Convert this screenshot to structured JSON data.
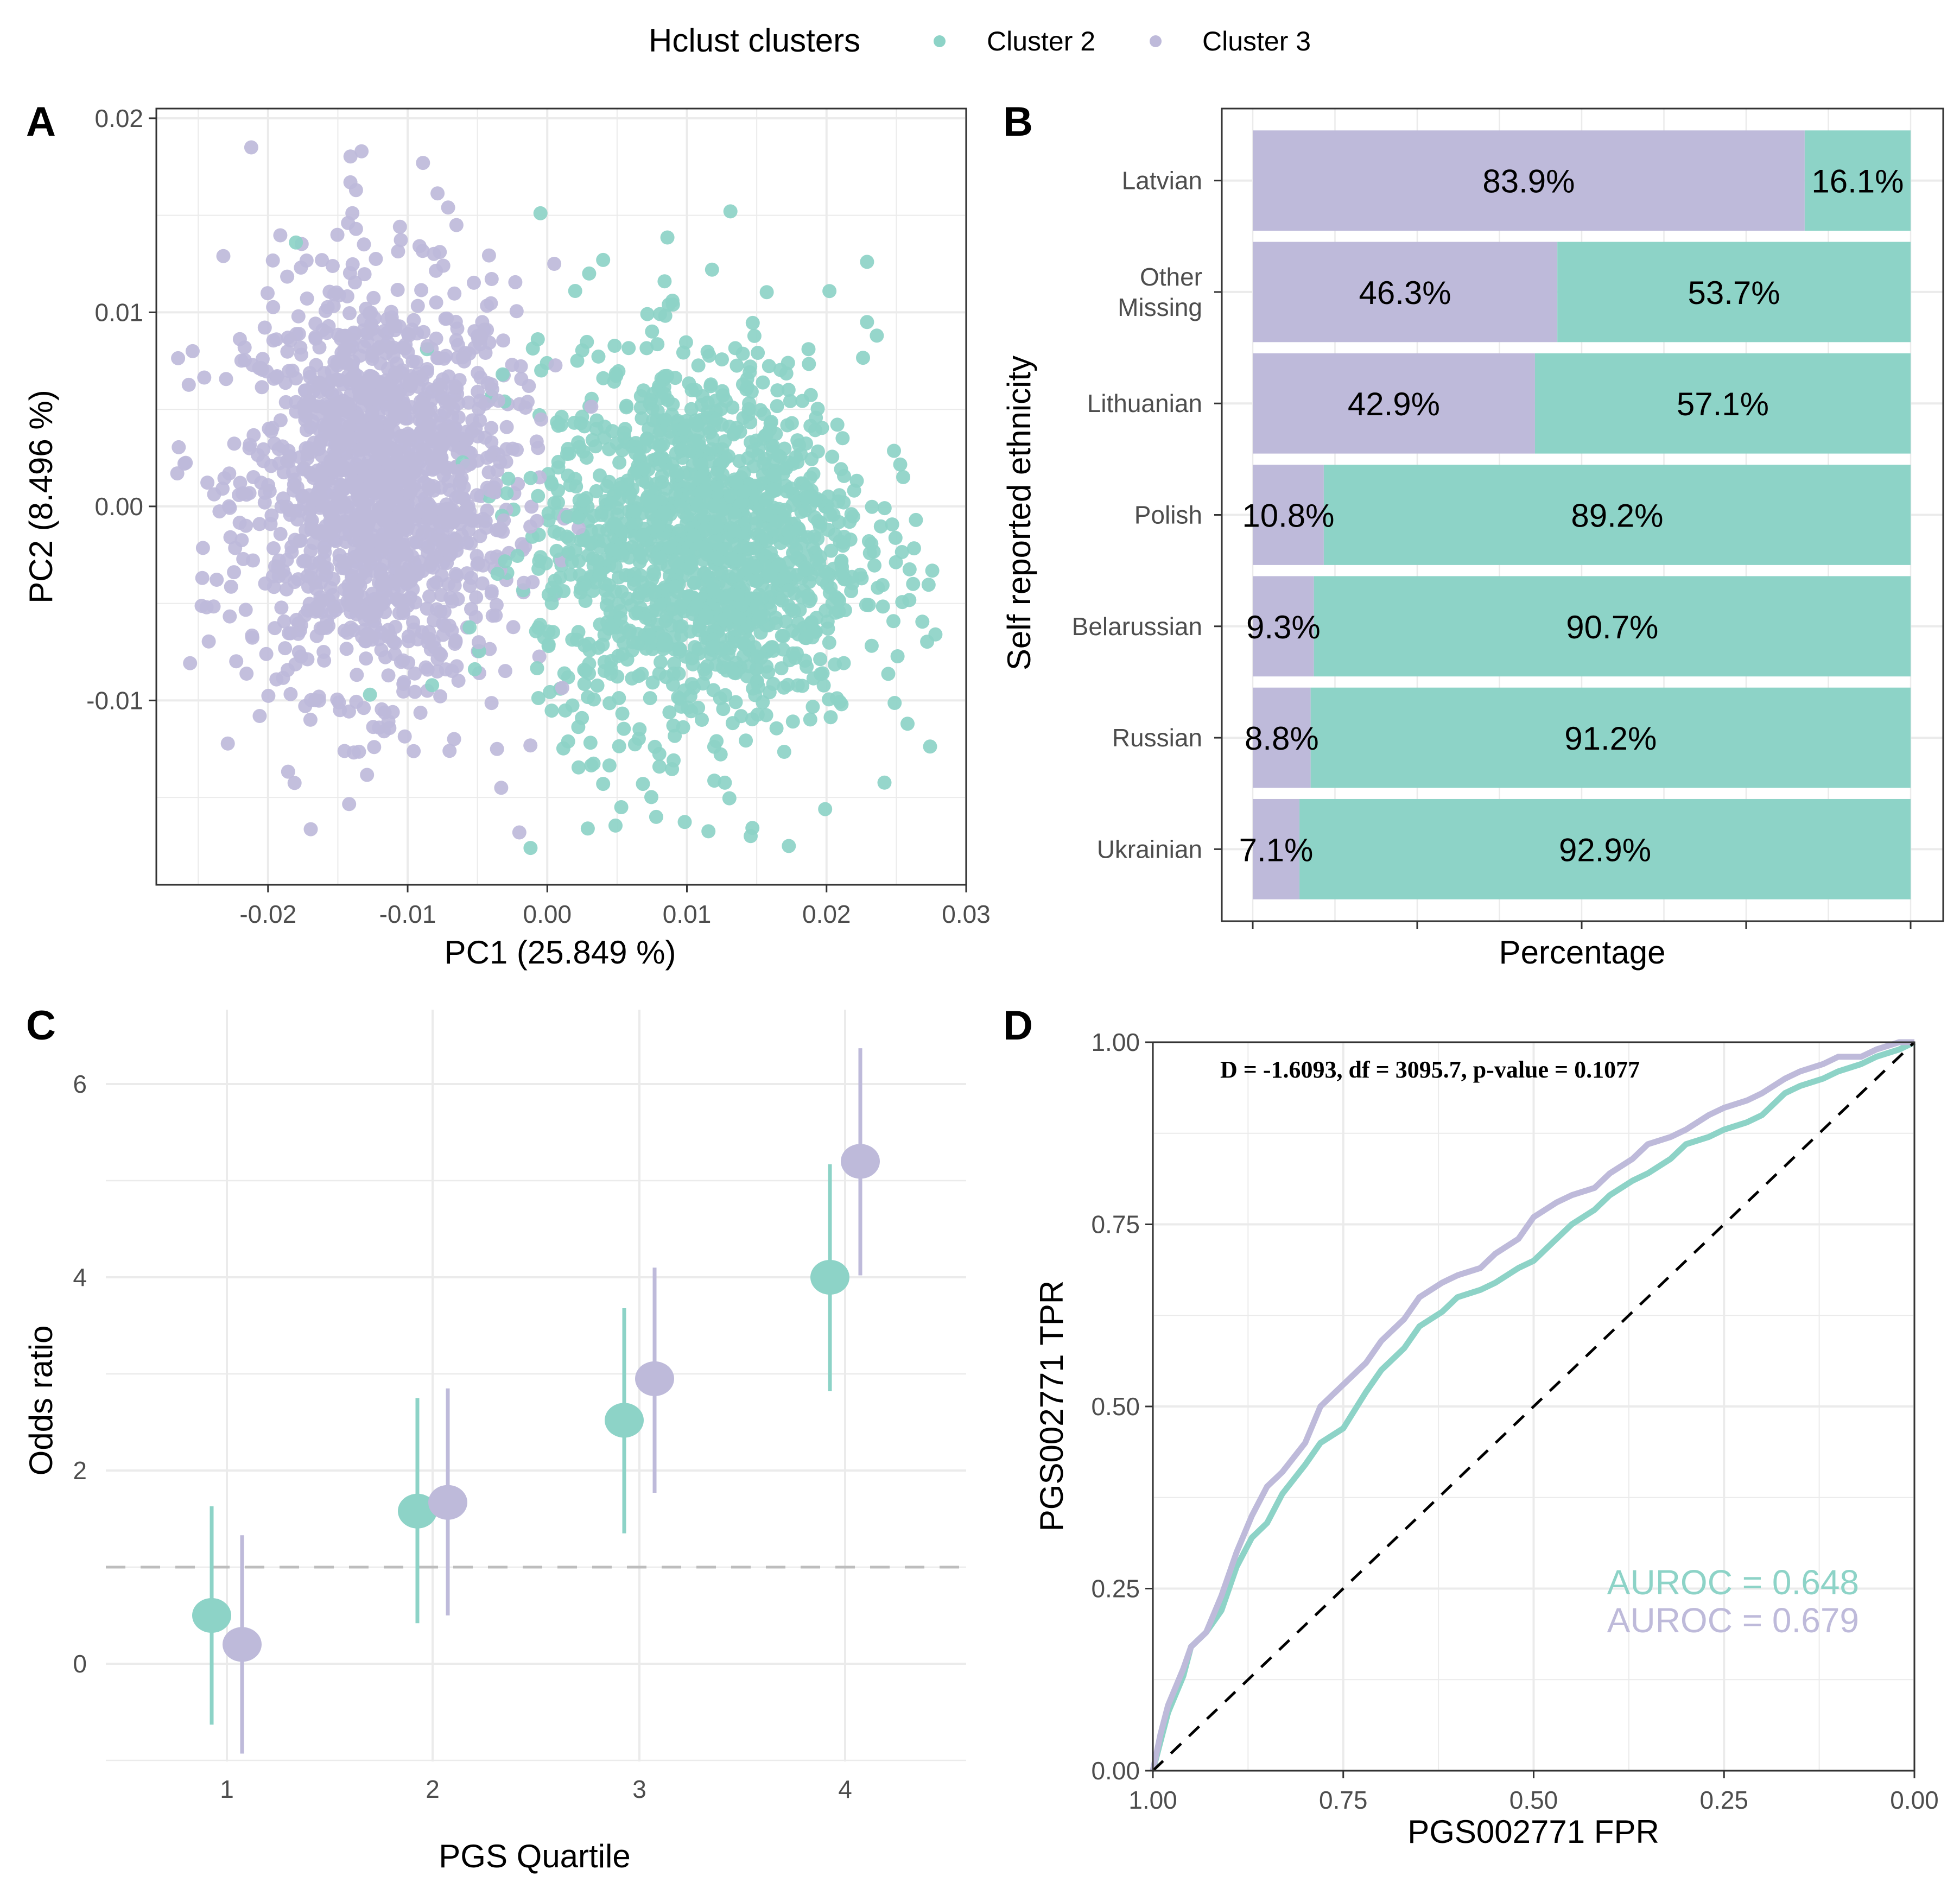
{
  "colors": {
    "cluster2": "#8dd3c7",
    "cluster3": "#bebada",
    "grid": "#ebebeb",
    "panel_border": "#333333",
    "refline": "#bdbdbd"
  },
  "legend": {
    "title": "Hclust clusters",
    "entries": [
      {
        "label": "Cluster 2",
        "color_key": "cluster2"
      },
      {
        "label": "Cluster 3",
        "color_key": "cluster3"
      }
    ]
  },
  "chart_data": [
    {
      "panel": "A",
      "type": "scatter",
      "title": "",
      "xlabel": "PC1 (25.849 %)",
      "ylabel": "PC2 (8.496 %)",
      "xlim": [
        -0.028,
        0.03
      ],
      "ylim": [
        -0.0195,
        0.0205
      ],
      "xticks": [
        -0.02,
        -0.01,
        0.0,
        0.01,
        0.02,
        0.03
      ],
      "xtick_labels": [
        "-0.02",
        "-0.01",
        "0.00",
        "0.01",
        "0.02",
        "0.03"
      ],
      "yticks": [
        -0.01,
        0.0,
        0.01,
        0.02
      ],
      "ytick_labels": [
        "-0.01",
        "0.00",
        "0.01",
        "0.02"
      ],
      "grid": true,
      "series": [
        {
          "name": "Cluster 3",
          "color_key": "cluster3",
          "distribution": {
            "center": [
              -0.012,
              0.001
            ],
            "sd": [
              0.0048,
              0.0052
            ],
            "n": 1500
          },
          "outliers": [
            [
              -0.0212,
              0.0185
            ],
            [
              -0.0133,
              0.0183
            ],
            [
              -0.0089,
              0.0177
            ],
            [
              -0.0141,
              0.0167
            ],
            [
              -0.0137,
              0.0163
            ],
            [
              -0.0071,
              0.0154
            ],
            [
              -0.0137,
              0.0143
            ],
            [
              -0.0232,
              0.0129
            ],
            [
              -0.0254,
              0.008
            ],
            [
              -0.0265,
              0.0017
            ],
            [
              -0.0244,
              -0.0052
            ],
            [
              -0.0206,
              -0.0108
            ],
            [
              -0.0124,
              -0.0124
            ],
            [
              -0.007,
              -0.0126
            ],
            [
              -0.0033,
              -0.0145
            ],
            [
              -0.002,
              -0.0168
            ],
            [
              -0.0036,
              -0.0125
            ],
            [
              0.0005,
              0.0125
            ]
          ]
        },
        {
          "name": "Cluster 2",
          "color_key": "cluster2",
          "distribution": {
            "center": [
              0.011,
              -0.002
            ],
            "sd": [
              0.0058,
              0.0048
            ],
            "n": 1500
          },
          "outliers": [
            [
              -0.018,
              0.0136
            ],
            [
              0.004,
              0.0127
            ],
            [
              0.003,
              0.012
            ],
            [
              0.002,
              0.0111
            ],
            [
              0.0118,
              0.0122
            ],
            [
              0.0084,
              0.0116
            ],
            [
              0.009,
              0.0104
            ],
            [
              0.0229,
              0.0126
            ],
            [
              0.0229,
              0.0095
            ],
            [
              0.0236,
              0.0088
            ],
            [
              0.0278,
              -0.0066
            ],
            [
              0.0264,
              -0.0007
            ],
            [
              0.0258,
              -0.0112
            ],
            [
              0.0199,
              -0.0156
            ],
            [
              0.0173,
              -0.0175
            ],
            [
              0.0029,
              -0.0166
            ],
            [
              -0.0012,
              -0.0176
            ],
            [
              0.0078,
              -0.016
            ],
            [
              0.0053,
              -0.0155
            ],
            [
              0.004,
              -0.0143
            ],
            [
              -0.0127,
              -0.0097
            ]
          ]
        }
      ]
    },
    {
      "panel": "B",
      "type": "bar",
      "orientation": "horizontal",
      "stacked": true,
      "xlabel": "Percentage",
      "ylabel": "Self reported ethnicity",
      "xlim": [
        0,
        100
      ],
      "grid": true,
      "categories": [
        "Latvian",
        "Other\nMissing",
        "Lithuanian",
        "Polish",
        "Belarussian",
        "Russian",
        "Ukrainian"
      ],
      "category_lines": [
        [
          "Latvian"
        ],
        [
          "Other",
          "Missing"
        ],
        [
          "Lithuanian"
        ],
        [
          "Polish"
        ],
        [
          "Belarussian"
        ],
        [
          "Russian"
        ],
        [
          "Ukrainian"
        ]
      ],
      "series": [
        {
          "name": "Cluster 3",
          "color_key": "cluster3",
          "values": [
            83.9,
            46.3,
            42.9,
            10.8,
            9.3,
            8.8,
            7.1
          ],
          "labels": [
            "83.9%",
            "46.3%",
            "42.9%",
            "10.8%",
            "9.3%",
            "8.8%",
            "7.1%"
          ]
        },
        {
          "name": "Cluster 2",
          "color_key": "cluster2",
          "values": [
            16.1,
            53.7,
            57.1,
            89.2,
            90.7,
            91.2,
            92.9
          ],
          "labels": [
            "16.1%",
            "53.7%",
            "57.1%",
            "89.2%",
            "90.7%",
            "91.2%",
            "92.9%"
          ]
        }
      ]
    },
    {
      "panel": "C",
      "type": "scatter",
      "subtype": "pointrange",
      "xlabel": "PGS Quartile",
      "ylabel": "Odds ratio",
      "categories": [
        "1",
        "2",
        "3",
        "4"
      ],
      "ylim": [
        -1.0,
        6.8
      ],
      "yticks": [
        0,
        2,
        4,
        6
      ],
      "ytick_labels": [
        "0",
        "2",
        "4",
        "6"
      ],
      "reference_line": 1,
      "grid": true,
      "series": [
        {
          "name": "Cluster 2",
          "color_key": "cluster2",
          "values": [
            0.5,
            1.58,
            2.52,
            4.0
          ],
          "lower": [
            -0.63,
            0.42,
            1.35,
            2.82
          ],
          "upper": [
            1.63,
            2.75,
            3.68,
            5.17
          ]
        },
        {
          "name": "Cluster 3",
          "color_key": "cluster3",
          "values": [
            0.2,
            1.67,
            2.95,
            5.2
          ],
          "lower": [
            -0.93,
            0.5,
            1.77,
            4.02
          ],
          "upper": [
            1.33,
            2.85,
            4.1,
            6.37
          ]
        }
      ]
    },
    {
      "panel": "D",
      "type": "line",
      "title": "",
      "xlabel": "PGS002771 FPR",
      "ylabel": "PGS002771 TPR",
      "xlim": [
        1.0,
        0.0
      ],
      "ylim": [
        0.0,
        1.0
      ],
      "xticks": [
        1.0,
        0.75,
        0.5,
        0.25,
        0.0
      ],
      "xtick_labels": [
        "1.00",
        "0.75",
        "0.50",
        "0.25",
        "0.00"
      ],
      "yticks": [
        0.0,
        0.25,
        0.5,
        0.75,
        1.0
      ],
      "ytick_labels": [
        "0.00",
        "0.25",
        "0.50",
        "0.75",
        "1.00"
      ],
      "grid": true,
      "annotation": "D = -1.6093, df = 3095.7, p-value = 0.1077",
      "series": [
        {
          "name": "Cluster 2",
          "color_key": "cluster2",
          "auroc_label": "AUROC = 0.648",
          "x": [
            1.0,
            0.99,
            0.98,
            0.96,
            0.95,
            0.93,
            0.91,
            0.89,
            0.87,
            0.85,
            0.83,
            0.8,
            0.78,
            0.75,
            0.72,
            0.7,
            0.67,
            0.65,
            0.62,
            0.6,
            0.57,
            0.55,
            0.52,
            0.5,
            0.47,
            0.45,
            0.42,
            0.4,
            0.37,
            0.35,
            0.32,
            0.3,
            0.27,
            0.25,
            0.22,
            0.2,
            0.17,
            0.15,
            0.12,
            0.1,
            0.07,
            0.05,
            0.02,
            0.0
          ],
          "y": [
            0.0,
            0.04,
            0.08,
            0.13,
            0.17,
            0.19,
            0.22,
            0.28,
            0.32,
            0.34,
            0.38,
            0.42,
            0.45,
            0.47,
            0.52,
            0.55,
            0.58,
            0.61,
            0.63,
            0.65,
            0.66,
            0.67,
            0.69,
            0.7,
            0.73,
            0.75,
            0.77,
            0.79,
            0.81,
            0.82,
            0.84,
            0.86,
            0.87,
            0.88,
            0.89,
            0.9,
            0.93,
            0.94,
            0.95,
            0.96,
            0.97,
            0.98,
            0.99,
            1.0
          ]
        },
        {
          "name": "Cluster 3",
          "color_key": "cluster3",
          "auroc_label": "AUROC = 0.679",
          "x": [
            1.0,
            0.99,
            0.98,
            0.96,
            0.95,
            0.93,
            0.91,
            0.89,
            0.87,
            0.85,
            0.83,
            0.8,
            0.78,
            0.75,
            0.72,
            0.7,
            0.67,
            0.65,
            0.62,
            0.6,
            0.57,
            0.55,
            0.52,
            0.5,
            0.47,
            0.45,
            0.42,
            0.4,
            0.37,
            0.35,
            0.32,
            0.3,
            0.27,
            0.25,
            0.22,
            0.2,
            0.17,
            0.15,
            0.12,
            0.1,
            0.07,
            0.05,
            0.02,
            0.0
          ],
          "y": [
            0.0,
            0.05,
            0.09,
            0.14,
            0.17,
            0.19,
            0.24,
            0.3,
            0.35,
            0.39,
            0.41,
            0.45,
            0.5,
            0.53,
            0.56,
            0.59,
            0.62,
            0.65,
            0.67,
            0.68,
            0.69,
            0.71,
            0.73,
            0.76,
            0.78,
            0.79,
            0.8,
            0.82,
            0.84,
            0.86,
            0.87,
            0.88,
            0.9,
            0.91,
            0.92,
            0.93,
            0.95,
            0.96,
            0.97,
            0.98,
            0.98,
            0.99,
            1.0,
            1.0
          ]
        },
        {
          "name": "Chance",
          "style": "dashed",
          "color": "#000000",
          "x": [
            1.0,
            0.0
          ],
          "y": [
            0.0,
            1.0
          ]
        }
      ]
    }
  ],
  "panel_letters": [
    "A",
    "B",
    "C",
    "D"
  ]
}
